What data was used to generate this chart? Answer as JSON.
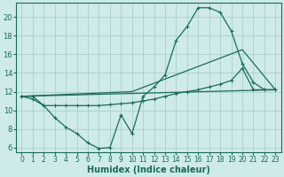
{
  "bg_color": "#ceeaea",
  "grid_color": "#aacfcf",
  "line_color": "#1a6b5a",
  "xlabel": "Humidex (Indice chaleur)",
  "xlim": [
    -0.5,
    23.5
  ],
  "ylim": [
    5.5,
    21.5
  ],
  "xticks": [
    0,
    1,
    2,
    3,
    4,
    5,
    6,
    7,
    8,
    9,
    10,
    11,
    12,
    13,
    14,
    15,
    16,
    17,
    18,
    19,
    20,
    21,
    22,
    23
  ],
  "yticks": [
    6,
    8,
    10,
    12,
    14,
    16,
    18,
    20
  ],
  "curve1_x": [
    0,
    1,
    2,
    3,
    4,
    5,
    6,
    7,
    8,
    9,
    10,
    11,
    12,
    13,
    14,
    15,
    16,
    17,
    18,
    19,
    20,
    21,
    22,
    23
  ],
  "curve1_y": [
    11.5,
    11.5,
    10.5,
    9.2,
    8.2,
    7.5,
    6.5,
    5.9,
    6.0,
    9.5,
    7.5,
    11.5,
    12.5,
    13.8,
    17.5,
    19.0,
    21.0,
    21.0,
    20.5,
    18.5,
    15.0,
    13.0,
    12.2,
    12.2
  ],
  "curve2_x": [
    0,
    1,
    2,
    3,
    4,
    5,
    6,
    7,
    8,
    9,
    10,
    11,
    12,
    13,
    14,
    15,
    16,
    17,
    18,
    19,
    20,
    21,
    22,
    23
  ],
  "curve2_y": [
    11.5,
    11.2,
    10.5,
    10.5,
    10.5,
    10.5,
    10.5,
    10.5,
    10.6,
    10.7,
    10.8,
    11.0,
    11.2,
    11.5,
    11.8,
    12.0,
    12.2,
    12.5,
    12.8,
    13.2,
    14.5,
    12.2,
    12.2,
    12.2
  ],
  "curve3_x": [
    0,
    23
  ],
  "curve3_y": [
    11.5,
    12.2
  ],
  "curve4_x": [
    0,
    10,
    20,
    23
  ],
  "curve4_y": [
    11.5,
    12.0,
    16.5,
    12.2
  ]
}
